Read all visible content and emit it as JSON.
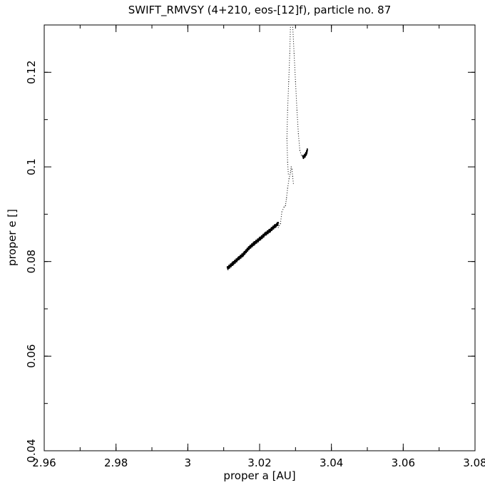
{
  "chart_data": {
    "type": "scatter",
    "title": "SWIFT_RMVSY (4+210, eos-[12]f), particle no. 87",
    "xlabel": "proper a [AU]",
    "ylabel": "proper e []",
    "xlim": [
      2.96,
      3.08
    ],
    "ylim": [
      0.04,
      0.13
    ],
    "grid": false,
    "x_ticks": [
      {
        "value": 2.96,
        "label": "2.96"
      },
      {
        "value": 2.98,
        "label": "2.98"
      },
      {
        "value": 3.0,
        "label": "3"
      },
      {
        "value": 3.02,
        "label": "3.02"
      },
      {
        "value": 3.04,
        "label": "3.04"
      },
      {
        "value": 3.06,
        "label": "3.06"
      },
      {
        "value": 3.08,
        "label": "3.08"
      }
    ],
    "y_ticks": [
      {
        "value": 0.04,
        "label": "0.04"
      },
      {
        "value": 0.06,
        "label": "0.06"
      },
      {
        "value": 0.08,
        "label": "0.08"
      },
      {
        "value": 0.1,
        "label": "0.1"
      },
      {
        "value": 0.12,
        "label": "0.12"
      }
    ],
    "x_minor_step": 0.01,
    "y_minor_step": 0.01,
    "series": [
      {
        "style": "dense",
        "points": [
          [
            3.011,
            0.0785
          ],
          [
            3.0125,
            0.0795
          ],
          [
            3.014,
            0.0805
          ],
          [
            3.0155,
            0.0815
          ],
          [
            3.017,
            0.0828
          ],
          [
            3.0185,
            0.0838
          ],
          [
            3.02,
            0.0847
          ],
          [
            3.0215,
            0.0857
          ],
          [
            3.023,
            0.0866
          ],
          [
            3.0245,
            0.0876
          ],
          [
            3.0252,
            0.088
          ]
        ]
      },
      {
        "style": "dotted",
        "points": [
          [
            3.0252,
            0.0872
          ],
          [
            3.0258,
            0.088
          ],
          [
            3.0262,
            0.0905
          ],
          [
            3.0268,
            0.0915
          ],
          [
            3.0272,
            0.0918
          ],
          [
            3.0275,
            0.0935
          ],
          [
            3.0278,
            0.0955
          ],
          [
            3.0282,
            0.0975
          ],
          [
            3.0286,
            0.0988
          ],
          [
            3.0288,
            0.1
          ],
          [
            3.029,
            0.0995
          ],
          [
            3.0292,
            0.098
          ],
          [
            3.0294,
            0.0965
          ]
        ]
      },
      {
        "style": "dotted",
        "points": [
          [
            3.028,
            0.0985
          ],
          [
            3.0278,
            0.101
          ],
          [
            3.0276,
            0.106
          ],
          [
            3.0278,
            0.112
          ],
          [
            3.0281,
            0.118
          ],
          [
            3.0284,
            0.124
          ],
          [
            3.0286,
            0.13
          ]
        ]
      },
      {
        "style": "dotted",
        "points": [
          [
            3.0292,
            0.13
          ],
          [
            3.0296,
            0.124
          ],
          [
            3.03,
            0.118
          ],
          [
            3.0304,
            0.112
          ],
          [
            3.0308,
            0.107
          ],
          [
            3.0312,
            0.1035
          ],
          [
            3.0316,
            0.1025
          ]
        ]
      },
      {
        "style": "dense",
        "points": [
          [
            3.032,
            0.102
          ],
          [
            3.0325,
            0.1022
          ],
          [
            3.033,
            0.1028
          ],
          [
            3.0333,
            0.1035
          ]
        ]
      }
    ]
  }
}
